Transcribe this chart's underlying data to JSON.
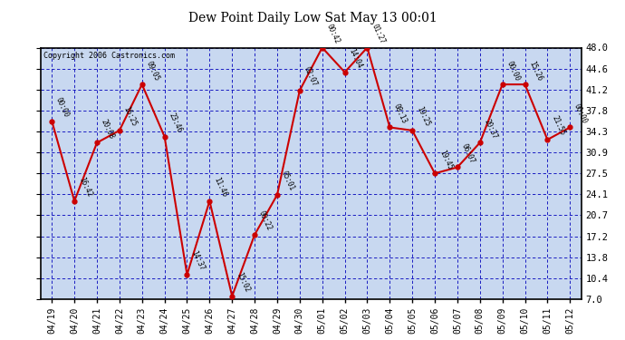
{
  "title": "Dew Point Daily Low Sat May 13 00:01",
  "copyright": "Copyright 2006 Castronics.com",
  "background_color": "#FFFFFF",
  "plot_bg_color": "#C8D8F0",
  "grid_color": "#0000BB",
  "line_color": "#CC0000",
  "marker_color": "#CC0000",
  "text_color": "#000000",
  "border_color": "#000000",
  "dates": [
    "04/19",
    "04/20",
    "04/21",
    "04/22",
    "04/23",
    "04/24",
    "04/25",
    "04/26",
    "04/27",
    "04/28",
    "04/29",
    "04/30",
    "05/01",
    "05/02",
    "05/03",
    "05/04",
    "05/05",
    "05/06",
    "05/07",
    "05/08",
    "05/09",
    "05/10",
    "05/11",
    "05/12"
  ],
  "values": [
    36.0,
    23.0,
    32.5,
    34.5,
    42.0,
    33.5,
    11.0,
    23.0,
    7.5,
    17.5,
    24.0,
    41.0,
    48.0,
    44.0,
    48.0,
    35.0,
    34.5,
    27.5,
    28.5,
    32.5,
    42.0,
    42.0,
    33.0,
    35.0
  ],
  "labels": [
    "00:00",
    "16:42",
    "20:08",
    "16:25",
    "09:05",
    "23:46",
    "14:37",
    "11:46",
    "15:02",
    "00:22",
    "05:01",
    "02:07",
    "00:42",
    "14:04",
    "01:27",
    "08:13",
    "19:25",
    "19:45",
    "06:07",
    "20:37",
    "00:00",
    "15:26",
    "21:55",
    "00:00"
  ],
  "ylim": [
    7.0,
    48.0
  ],
  "yticks": [
    7.0,
    10.4,
    13.8,
    17.2,
    20.7,
    24.1,
    27.5,
    30.9,
    34.3,
    37.8,
    41.2,
    44.6,
    48.0
  ],
  "ylabel_right": [
    "7.0",
    "10.4",
    "13.8",
    "17.2",
    "20.7",
    "24.1",
    "27.5",
    "30.9",
    "34.3",
    "37.8",
    "41.2",
    "44.6",
    "48.0"
  ]
}
